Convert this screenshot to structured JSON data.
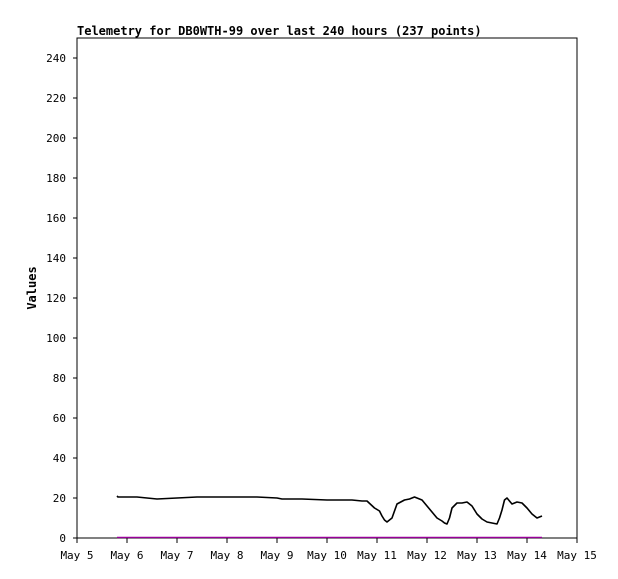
{
  "chart_data": {
    "type": "line",
    "title": "Telemetry for DB0WTH-99 over last 240 hours (237 points)",
    "ylabel": "Values",
    "xlabel": "",
    "xlim": [
      "May 5",
      "May 15"
    ],
    "ylim": [
      0,
      250
    ],
    "x_ticks": [
      "May 5",
      "May 6",
      "May 7",
      "May 8",
      "May 9",
      "May 10",
      "May 11",
      "May 12",
      "May 13",
      "May 14",
      "May 15"
    ],
    "y_ticks": [
      0,
      20,
      40,
      60,
      80,
      100,
      120,
      140,
      160,
      180,
      200,
      220,
      240
    ],
    "grid": false,
    "series": [
      {
        "color": "#000000",
        "x_unit": "days since May 5",
        "x": [
          0.8,
          0.82,
          1.0,
          1.2,
          1.4,
          1.6,
          2.0,
          2.4,
          2.8,
          3.2,
          3.6,
          4.0,
          4.1,
          4.5,
          5.0,
          5.5,
          5.7,
          5.8,
          5.95,
          6.05,
          6.1,
          6.15,
          6.2,
          6.3,
          6.4,
          6.55,
          6.65,
          6.75,
          6.9,
          7.0,
          7.1,
          7.2,
          7.3,
          7.35,
          7.4,
          7.45,
          7.5,
          7.6,
          7.7,
          7.8,
          7.9,
          8.0,
          8.1,
          8.2,
          8.3,
          8.4,
          8.45,
          8.5,
          8.55,
          8.6,
          8.7,
          8.8,
          8.9,
          9.0,
          9.1,
          9.15,
          9.2,
          9.25,
          9.3
        ],
        "values": [
          21,
          20.5,
          20.5,
          20.5,
          20,
          19.5,
          20,
          20.5,
          20.5,
          20.5,
          20.5,
          20,
          19.5,
          19.5,
          19,
          19,
          18.5,
          18.5,
          15,
          13.5,
          11,
          9,
          8,
          10,
          17,
          19,
          19.5,
          20.5,
          19,
          16,
          13,
          10,
          8.5,
          7.5,
          7,
          10,
          15,
          17.5,
          17.5,
          18,
          16,
          12,
          9.5,
          8,
          7.5,
          7,
          10,
          14,
          19,
          20,
          17,
          18,
          17.5,
          15,
          12,
          11,
          10,
          10.5,
          11
        ]
      },
      {
        "color": "#990099",
        "x_unit": "days since May 5",
        "x": [
          0.8,
          9.3
        ],
        "values": [
          0.3,
          0.3
        ]
      }
    ]
  }
}
